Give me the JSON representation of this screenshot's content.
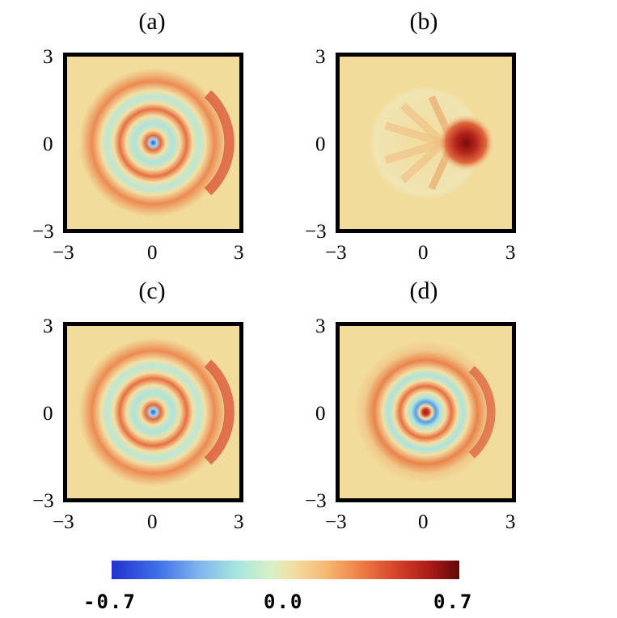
{
  "chart_data": [
    {
      "type": "heatmap",
      "panel_label": "(a)",
      "x_ticks": [
        "−3",
        "0",
        "3"
      ],
      "y_ticks": [
        "3",
        "0",
        "−3"
      ],
      "xlim": [
        -3,
        3
      ],
      "ylim": [
        -3,
        3
      ]
    },
    {
      "type": "heatmap",
      "panel_label": "(b)",
      "x_ticks": [
        "−3",
        "0",
        "3"
      ],
      "y_ticks": [
        "3",
        "0",
        "−3"
      ],
      "xlim": [
        -3,
        3
      ],
      "ylim": [
        -3,
        3
      ]
    },
    {
      "type": "heatmap",
      "panel_label": "(c)",
      "x_ticks": [
        "−3",
        "0",
        "3"
      ],
      "y_ticks": [
        "3",
        "0",
        "−3"
      ],
      "xlim": [
        -3,
        3
      ],
      "ylim": [
        -3,
        3
      ]
    },
    {
      "type": "heatmap",
      "panel_label": "(d)",
      "x_ticks": [
        "−3",
        "0",
        "3"
      ],
      "y_ticks": [
        "3",
        "0",
        "−3"
      ],
      "xlim": [
        -3,
        3
      ],
      "ylim": [
        -3,
        3
      ]
    }
  ],
  "colorbar": {
    "min_label": "-0.7",
    "mid_label": "0.0",
    "max_label": "0.7",
    "range": [
      -0.7,
      0.7
    ],
    "colors": [
      "#2233cc",
      "#7fb4ec",
      "#d8f0c4",
      "#f2dfa4",
      "#ee7b45",
      "#a81a18",
      "#5e0a08"
    ]
  }
}
